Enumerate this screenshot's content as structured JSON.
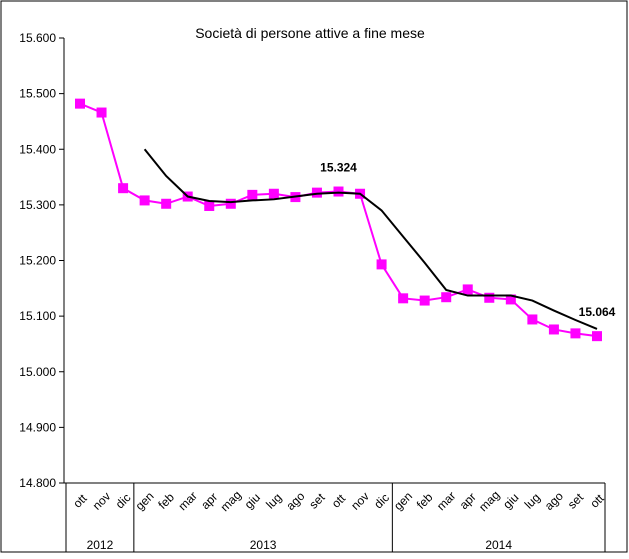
{
  "chart_data": {
    "type": "line",
    "title": "Società di persone attive a fine mese",
    "groups": [
      {
        "label": "2012",
        "categories": [
          "ott",
          "nov",
          "dic"
        ]
      },
      {
        "label": "2013",
        "categories": [
          "gen",
          "feb",
          "mar",
          "apr",
          "mag",
          "giu",
          "lug",
          "ago",
          "set",
          "ott",
          "nov",
          "dic"
        ]
      },
      {
        "label": "2014",
        "categories": [
          "gen",
          "feb",
          "mar",
          "apr",
          "mag",
          "giu",
          "lug",
          "ago",
          "set",
          "ott"
        ]
      }
    ],
    "series": [
      {
        "color": "#ff00ff",
        "marker": "square",
        "values": [
          15482,
          15466,
          15330,
          15308,
          15302,
          15315,
          15298,
          15302,
          15318,
          15320,
          15314,
          15322,
          15324,
          15320,
          15193,
          15132,
          15128,
          15134,
          15148,
          15133,
          15130,
          15094,
          15076,
          15069,
          15064
        ],
        "value_labels": [
          null,
          null,
          null,
          null,
          null,
          null,
          null,
          null,
          null,
          null,
          null,
          null,
          "15.324",
          null,
          null,
          null,
          null,
          null,
          null,
          null,
          null,
          null,
          null,
          null,
          "15.064"
        ]
      },
      {
        "color": "#000000",
        "marker": "none",
        "values": [
          null,
          null,
          null,
          15400,
          15352,
          15315,
          15307,
          15305,
          15308,
          15310,
          15315,
          15320,
          15322,
          15320,
          15290,
          15243,
          15196,
          15147,
          15137,
          15137,
          15137,
          15128,
          15110,
          15093,
          15077
        ]
      }
    ],
    "ylim": [
      14800,
      15600
    ],
    "yticks": [
      {
        "value": 14800,
        "label": "14.800"
      },
      {
        "value": 14900,
        "label": "14.900"
      },
      {
        "value": 15000,
        "label": "15.000"
      },
      {
        "value": 15100,
        "label": "15.100"
      },
      {
        "value": 15200,
        "label": "15.200"
      },
      {
        "value": 15300,
        "label": "15.300"
      },
      {
        "value": 15400,
        "label": "15.400"
      },
      {
        "value": 15500,
        "label": "15.500"
      },
      {
        "value": 15600,
        "label": "15.600"
      }
    ],
    "grid": false
  }
}
